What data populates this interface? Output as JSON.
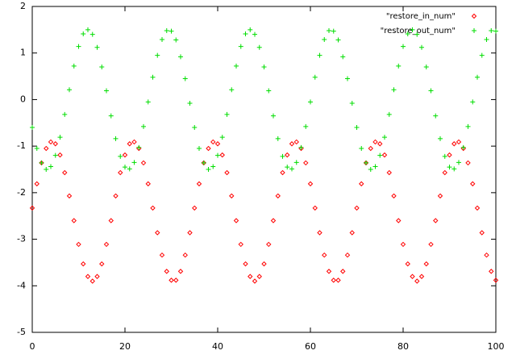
{
  "chart_data": {
    "type": "scatter",
    "x": [
      0,
      1,
      2,
      3,
      4,
      5,
      6,
      7,
      8,
      9,
      10,
      11,
      12,
      13,
      14,
      15,
      16,
      17,
      18,
      19,
      20,
      21,
      22,
      23,
      24,
      25,
      26,
      27,
      28,
      29,
      30,
      31,
      32,
      33,
      34,
      35,
      36,
      37,
      38,
      39,
      40,
      41,
      42,
      43,
      44,
      45,
      46,
      47,
      48,
      49,
      50,
      51,
      52,
      53,
      54,
      55,
      56,
      57,
      58,
      59,
      60,
      61,
      62,
      63,
      64,
      65,
      66,
      67,
      68,
      69,
      70,
      71,
      72,
      73,
      74,
      75,
      76,
      77,
      78,
      79,
      80,
      81,
      82,
      83,
      84,
      85,
      86,
      87,
      88,
      89,
      90,
      91,
      92,
      93,
      94,
      95,
      96,
      97,
      98,
      99,
      100
    ],
    "series": [
      {
        "name": "\"restore_in_num\"",
        "color": "#ff0000",
        "marker": "diamond",
        "values": [
          -2.33,
          -1.81,
          -1.36,
          -1.05,
          -0.91,
          -0.95,
          -1.19,
          -1.57,
          -2.07,
          -2.6,
          -3.11,
          -3.53,
          -3.8,
          -3.9,
          -3.8,
          -3.53,
          -3.11,
          -2.6,
          -2.07,
          -1.57,
          -1.19,
          -0.95,
          -0.91,
          -1.05,
          -1.36,
          -1.81,
          -2.33,
          -2.86,
          -3.34,
          -3.69,
          -3.88,
          -3.88,
          -3.69,
          -3.34,
          -2.86,
          -2.33,
          -1.81,
          -1.36,
          -1.05,
          -0.91,
          -0.95,
          -1.19,
          -1.57,
          -2.07,
          -2.6,
          -3.11,
          -3.53,
          -3.8,
          -3.9,
          -3.8,
          -3.53,
          -3.11,
          -2.6,
          -2.07,
          -1.57,
          -1.19,
          -0.95,
          -0.91,
          -1.05,
          -1.36,
          -1.81,
          -2.33,
          -2.86,
          -3.34,
          -3.69,
          -3.88,
          -3.88,
          -3.69,
          -3.34,
          -2.86,
          -2.33,
          -1.81,
          -1.36,
          -1.05,
          -0.91,
          -0.95,
          -1.19,
          -1.57,
          -2.07,
          -2.6,
          -3.11,
          -3.53,
          -3.8,
          -3.9,
          -3.8,
          -3.53,
          -3.11,
          -2.6,
          -2.07,
          -1.57,
          -1.19,
          -0.95,
          -0.91,
          -1.05,
          -1.36,
          -1.81,
          -2.33,
          -2.86,
          -3.34,
          -3.69,
          -3.88
        ]
      },
      {
        "name": "\"restore_out_num\"",
        "color": "#00dd00",
        "marker": "plus",
        "values": [
          -0.6,
          -1.05,
          -1.36,
          -1.5,
          -1.44,
          -1.2,
          -0.81,
          -0.32,
          0.21,
          0.72,
          1.14,
          1.41,
          1.5,
          1.4,
          1.12,
          0.7,
          0.19,
          -0.35,
          -0.84,
          -1.22,
          -1.45,
          -1.49,
          -1.35,
          -1.03,
          -0.58,
          -0.05,
          0.48,
          0.95,
          1.29,
          1.48,
          1.47,
          1.28,
          0.92,
          0.45,
          -0.08,
          -0.6,
          -1.05,
          -1.36,
          -1.5,
          -1.44,
          -1.2,
          -0.81,
          -0.32,
          0.21,
          0.72,
          1.14,
          1.41,
          1.5,
          1.4,
          1.12,
          0.7,
          0.19,
          -0.35,
          -0.84,
          -1.22,
          -1.45,
          -1.49,
          -1.35,
          -1.03,
          -0.58,
          -0.05,
          0.48,
          0.95,
          1.29,
          1.48,
          1.47,
          1.28,
          0.92,
          0.45,
          -0.08,
          -0.6,
          -1.05,
          -1.36,
          -1.5,
          -1.44,
          -1.2,
          -0.81,
          -0.32,
          0.21,
          0.72,
          1.14,
          1.41,
          1.5,
          1.4,
          1.12,
          0.7,
          0.19,
          -0.35,
          -0.84,
          -1.22,
          -1.45,
          -1.49,
          -1.35,
          -1.03,
          -0.58,
          -0.05,
          0.48,
          0.95,
          1.29,
          1.48,
          1.47
        ]
      }
    ],
    "xlim": [
      0,
      100
    ],
    "xticks": [
      0,
      20,
      40,
      60,
      80,
      100
    ],
    "ylim": [
      -5,
      2
    ],
    "yticks": [
      -5,
      -4,
      -3,
      -2,
      -1,
      0,
      1,
      2
    ],
    "legend": "upper right",
    "grid": false
  }
}
